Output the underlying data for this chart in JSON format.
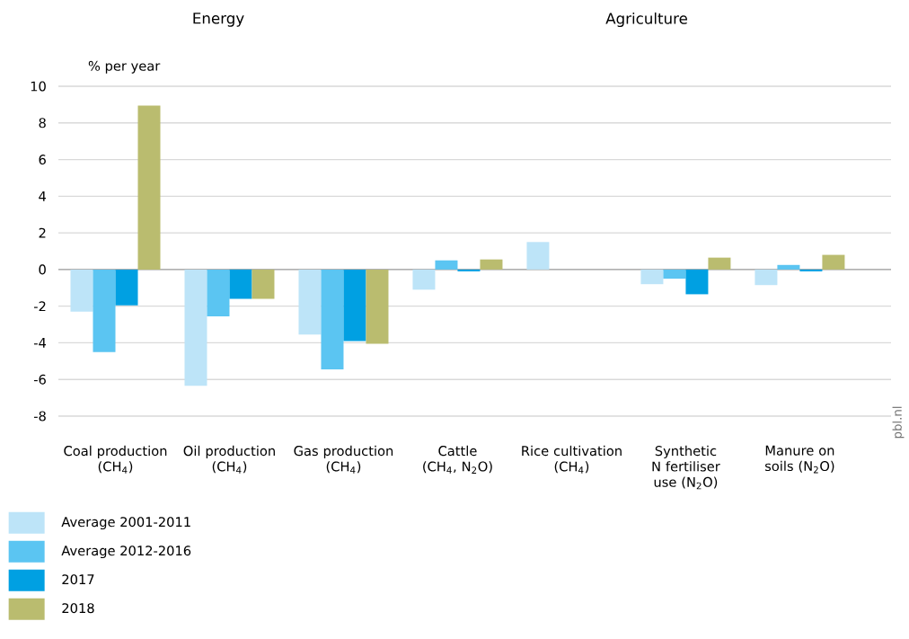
{
  "chart_data": {
    "type": "bar",
    "categories": [
      "Coal production (CH$_{4}$)",
      "Oil production (CH$_{4}$)",
      "Gas production (CH$_{4}$)",
      "Cattle (CH$_{4}$, N$_{2}$O)",
      "Rice cultivation (CH$_{4}$)",
      "Synthetic N fertiliser use (N$_{2}$O)",
      "Manure on soils (N$_{2}$O)"
    ],
    "series": [
      {
        "name": "Average 2001-2011",
        "color": "#bde4f8",
        "values": [
          -2.3,
          -6.35,
          -3.55,
          -1.1,
          1.5,
          -0.8,
          -0.85
        ]
      },
      {
        "name": "Average 2012-2016",
        "color": "#5bc5f2",
        "values": [
          -4.5,
          -2.55,
          -5.45,
          0.5,
          null,
          -0.5,
          0.25
        ]
      },
      {
        "name": "2017",
        "color": "#00a0e2",
        "values": [
          -1.95,
          -1.6,
          -3.9,
          -0.1,
          null,
          -1.35,
          -0.1
        ]
      },
      {
        "name": "2018",
        "color": "#babc6f",
        "values": [
          8.95,
          -1.6,
          -4.05,
          0.55,
          null,
          0.65,
          0.8
        ]
      }
    ],
    "ylabel": "% per year",
    "ylim": [
      -8,
      10
    ],
    "yticks": [
      -8,
      -6,
      -4,
      -2,
      0,
      2,
      4,
      6,
      8,
      10
    ],
    "grid": "y",
    "legend": "bottom left",
    "annotations": [
      "Energy",
      "Agriculture",
      "pbl.nl"
    ]
  }
}
